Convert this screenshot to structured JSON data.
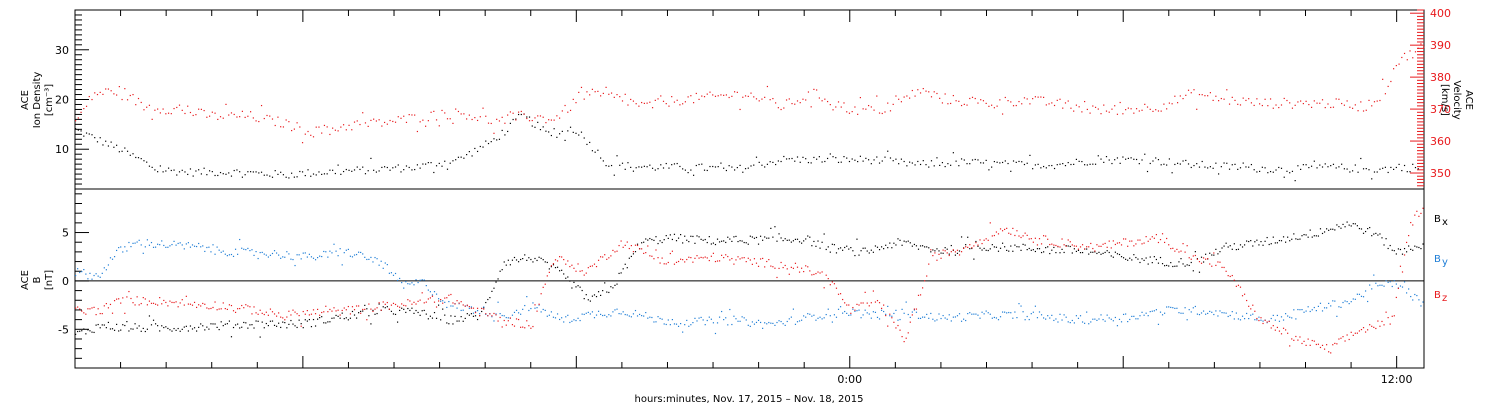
{
  "colors": {
    "black": "#000000",
    "red": "#e8191c",
    "blue": "#1f7ed6"
  },
  "xaxis": {
    "label": "hours:minutes, Nov. 17, 2015 – Nov. 18, 2015",
    "range_hours": [
      -17,
      12.6
    ],
    "ticks": [
      {
        "hour": 0,
        "label": "0:00"
      },
      {
        "hour": 12,
        "label": "12:00"
      }
    ]
  },
  "chart_data": [
    {
      "type": "scatter",
      "panel": "top",
      "y_left": {
        "label_lines": [
          "ACE",
          "Ion Density",
          "[cm⁻³]"
        ],
        "range": [
          2,
          38
        ],
        "ticks": [
          10,
          20,
          30
        ]
      },
      "y_right": {
        "label_lines": [
          "ACE",
          "Velocity",
          "[km/s]"
        ],
        "range": [
          345,
          401
        ],
        "ticks": [
          350,
          360,
          370,
          380,
          390,
          400
        ]
      },
      "data_end_hour": 12.6,
      "series": [
        {
          "axis": "left",
          "color": "black",
          "x": [
            -17,
            -16.5,
            -16,
            -15.2,
            -14.5,
            -13.5,
            -12.5,
            -11.5,
            -10.5,
            -9.5,
            -8.6,
            -7.8,
            -7.2,
            -6.6,
            -6,
            -5.3,
            -4.5,
            -3.5,
            -2.5,
            -1.5,
            -0.5,
            0.5,
            1.5,
            2.5,
            3.5,
            4.5,
            5.5,
            6.5,
            7.5,
            8.5,
            9.5,
            10.5,
            11.5,
            12.5
          ],
          "y": [
            14,
            12,
            10,
            6,
            5.5,
            5.5,
            5,
            5.5,
            6,
            6.5,
            8,
            12,
            17,
            13,
            14,
            7,
            6.5,
            6.5,
            6,
            8,
            8,
            8,
            7,
            7.5,
            7,
            7,
            8,
            8,
            7,
            6.5,
            6,
            6.5,
            6,
            6.5
          ]
        },
        {
          "axis": "right",
          "color": "red",
          "x": [
            -17,
            -16.6,
            -16,
            -15.5,
            -14.8,
            -14,
            -13.2,
            -12.5,
            -11.8,
            -11,
            -10.2,
            -9.3,
            -8.5,
            -7.8,
            -7.2,
            -6.5,
            -5.8,
            -5.2,
            -4.5,
            -3.8,
            -3,
            -2.3,
            -1.5,
            -0.8,
            0,
            0.8,
            1.5,
            2.2,
            3,
            3.8,
            4.5,
            5.3,
            6,
            6.8,
            7.5,
            8.3,
            9,
            9.8,
            10.5,
            11.3,
            11.7,
            12,
            12.6
          ],
          "y": [
            366,
            375,
            376,
            371,
            370,
            368,
            368,
            366,
            363,
            365,
            366,
            368,
            369,
            366,
            368,
            367,
            375,
            374,
            371,
            373,
            374,
            375,
            371,
            375,
            370,
            370,
            376,
            373,
            372,
            373,
            372,
            370,
            370,
            371,
            375,
            373,
            372,
            372,
            372,
            371,
            375,
            385,
            390
          ]
        }
      ]
    },
    {
      "type": "scatter",
      "panel": "bottom",
      "y_left": {
        "label_lines": [
          "ACE",
          "B",
          "[nT]"
        ],
        "range": [
          -9,
          9.5
        ],
        "ticks": [
          -5,
          0,
          5
        ]
      },
      "zero_line": true,
      "legend": [
        {
          "text": "B",
          "sub": "x",
          "color": "black"
        },
        {
          "text": "B",
          "sub": "y",
          "color": "blue"
        },
        {
          "text": "B",
          "sub": "z",
          "color": "red"
        }
      ],
      "series": [
        {
          "name": "Bx",
          "color": "black",
          "x": [
            -17,
            -16.4,
            -16,
            -15,
            -14,
            -13,
            -12,
            -11,
            -10.2,
            -9.5,
            -8.8,
            -8.1,
            -7.6,
            -7,
            -6.4,
            -5.7,
            -5.2,
            -4.6,
            -4,
            -3,
            -2,
            -1,
            -0.5,
            0.3,
            1,
            2,
            3,
            4,
            5,
            6,
            7,
            7.6,
            8.2,
            9,
            9.6,
            10.2,
            10.9,
            11.5,
            12,
            12.6
          ],
          "y": [
            -5.5,
            -4.5,
            -4.8,
            -4.8,
            -4.6,
            -4.4,
            -4.4,
            -3.5,
            -3,
            -3.2,
            -4,
            -3.5,
            2,
            2.5,
            1,
            -2,
            -0.5,
            4,
            4.5,
            4.2,
            4.3,
            4.4,
            3.5,
            3,
            4,
            3.2,
            3.6,
            3.4,
            3.2,
            2.5,
            2,
            2,
            3.5,
            4,
            4.5,
            5,
            6,
            5,
            3,
            4
          ]
        },
        {
          "name": "By",
          "color": "blue",
          "x": [
            -17,
            -16.5,
            -16.1,
            -15.6,
            -15,
            -14.2,
            -13.5,
            -13,
            -12.5,
            -11.9,
            -11,
            -10.3,
            -9.8,
            -9.4,
            -8.8,
            -8.1,
            -7.5,
            -7,
            -6.3,
            -5.8,
            -5,
            -4.2,
            -3.5,
            -2.5,
            -1.8,
            -1,
            -0.2,
            0.5,
            1.2,
            2,
            3,
            4,
            5,
            6,
            7,
            7.8,
            8.5,
            9.2,
            10,
            11,
            11.5,
            12,
            12.6
          ],
          "y": [
            1,
            0.5,
            3,
            4,
            3.8,
            3.5,
            3,
            3,
            2.8,
            2.5,
            3,
            2,
            -0.5,
            0,
            -2.5,
            -3,
            -3.5,
            -2.5,
            -4,
            -3.5,
            -3,
            -4,
            -4.2,
            -4,
            -4.5,
            -3.8,
            -3,
            -3.5,
            -3.2,
            -3.8,
            -3.5,
            -3.5,
            -4,
            -3.7,
            -3,
            -3,
            -3.5,
            -4,
            -3,
            -2,
            -0.5,
            -0.2,
            -2.5
          ]
        },
        {
          "name": "Bz",
          "color": "red",
          "x": [
            -17,
            -16.5,
            -16,
            -15.3,
            -14.5,
            -13.8,
            -13,
            -12.5,
            -12,
            -11,
            -10.2,
            -9.5,
            -8.8,
            -8.2,
            -7.6,
            -7,
            -6.5,
            -5.8,
            -5,
            -4.5,
            -4,
            -3,
            -2,
            -1.2,
            -0.5,
            0,
            0.6,
            1.2,
            1.8,
            2.5,
            3.4,
            4,
            4.6,
            5.4,
            6,
            6.8,
            7.5,
            8.2,
            9,
            9.8,
            10.5,
            11.2,
            11.9,
            12.3,
            12.6
          ],
          "y": [
            -3,
            -3,
            -2,
            -2,
            -2.3,
            -2.5,
            -3,
            -3.5,
            -3.3,
            -3,
            -2.5,
            -2.2,
            -1.7,
            -3,
            -4,
            -4.5,
            2.5,
            1,
            4,
            3,
            2,
            2.5,
            2,
            1.5,
            0.5,
            -3,
            -2,
            -6,
            2.5,
            3.5,
            5.5,
            4.5,
            4,
            3.5,
            4,
            4.5,
            2.5,
            1.5,
            -4,
            -6,
            -7,
            -5,
            -4,
            6,
            8
          ]
        }
      ]
    }
  ]
}
